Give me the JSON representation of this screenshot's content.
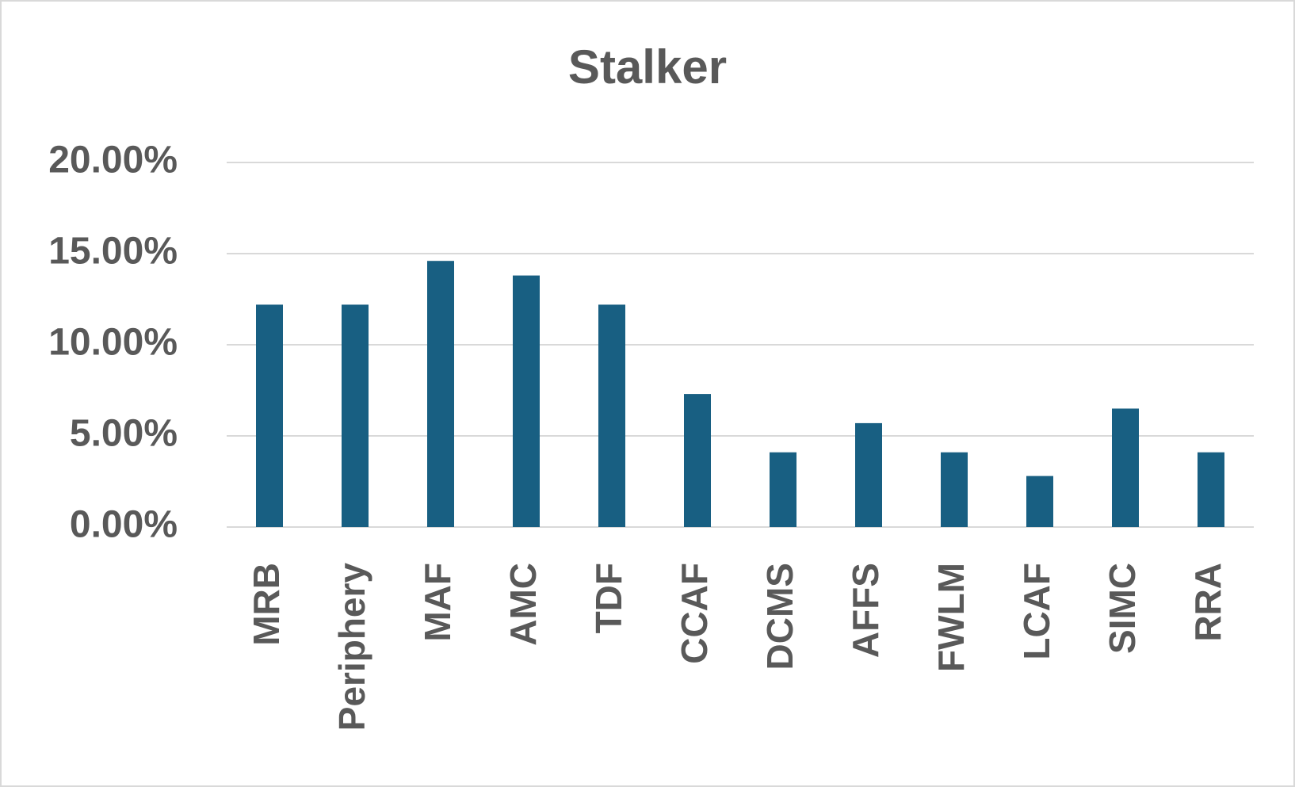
{
  "chart_data": {
    "type": "bar",
    "title": "Stalker",
    "categories": [
      "MRB",
      "Periphery",
      "MAF",
      "AMC",
      "TDF",
      "CCAF",
      "DCMS",
      "AFFS",
      "FWLM",
      "LCAF",
      "SIMC",
      "RRA"
    ],
    "values": [
      12.2,
      12.2,
      14.6,
      13.8,
      12.2,
      7.3,
      4.1,
      5.7,
      4.1,
      2.8,
      6.5,
      4.1
    ],
    "color": "#185f82",
    "ylim": [
      0,
      20
    ],
    "yticks": [
      {
        "value": 0,
        "label": "0.00%"
      },
      {
        "value": 5,
        "label": "5.00%"
      },
      {
        "value": 10,
        "label": "10.00%"
      },
      {
        "value": 15,
        "label": "15.00%"
      },
      {
        "value": 20,
        "label": "20.00%"
      }
    ],
    "grid": true
  }
}
